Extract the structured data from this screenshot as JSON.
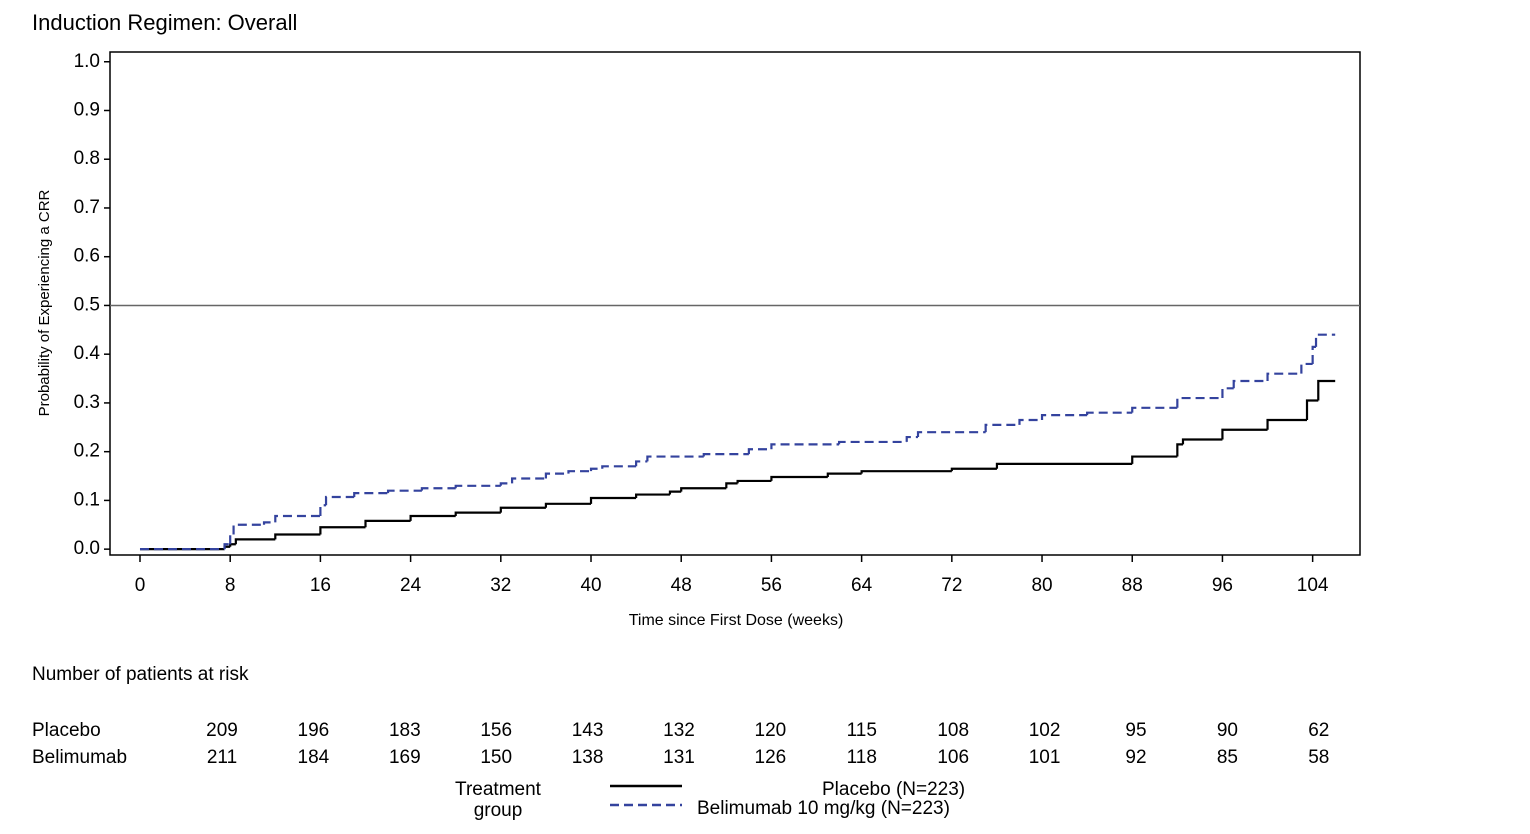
{
  "chart_data": {
    "type": "step",
    "title": "Induction Regimen: Overall",
    "x_label": "Time since First Dose (weeks)",
    "y_label": "Probability of Experiencing a CRR",
    "xlim": [
      -2.66,
      108.2
    ],
    "ylim": [
      -0.012,
      1.02
    ],
    "xticks": [
      0,
      8,
      16,
      24,
      32,
      40,
      48,
      56,
      64,
      72,
      80,
      88,
      96,
      104
    ],
    "yticks": [
      {
        "value": 0,
        "label": "0.0"
      },
      0.1,
      0.2,
      0.3,
      0.4,
      0.5,
      0.6,
      0.7,
      0.8,
      0.9,
      {
        "value": 1,
        "label": "1.0"
      }
    ],
    "hline": 0.5,
    "legend_title": "Treatment group",
    "series": [
      {
        "name": "Placebo (N=223)",
        "color": "#000000",
        "dash": "solid",
        "x": [
          0,
          7.5,
          8,
          8.5,
          12,
          16,
          20,
          24,
          28,
          32,
          36,
          40,
          44,
          47,
          48,
          52,
          53,
          56,
          61,
          64,
          72,
          76,
          88,
          92,
          92.5,
          96,
          100,
          103.5,
          104.5,
          106
        ],
        "values": [
          0,
          0.005,
          0.01,
          0.02,
          0.03,
          0.045,
          0.058,
          0.068,
          0.075,
          0.085,
          0.093,
          0.105,
          0.112,
          0.118,
          0.125,
          0.135,
          0.14,
          0.148,
          0.155,
          0.16,
          0.165,
          0.175,
          0.19,
          0.215,
          0.225,
          0.245,
          0.265,
          0.305,
          0.345,
          0.345
        ]
      },
      {
        "name": "Belimumab 10 mg/kg (N=223)",
        "color": "#34439e",
        "dash": "dashed",
        "x": [
          0,
          7.5,
          8,
          8.3,
          11,
          12,
          16,
          16.5,
          19,
          22,
          25,
          28,
          32,
          33,
          36,
          38,
          40,
          41,
          44,
          45,
          50,
          54,
          56,
          62,
          68,
          69,
          75,
          78,
          80,
          84,
          88,
          92,
          96,
          97,
          100,
          103,
          104,
          104.3,
          106
        ],
        "values": [
          0,
          0.01,
          0.03,
          0.05,
          0.055,
          0.068,
          0.09,
          0.107,
          0.115,
          0.12,
          0.125,
          0.13,
          0.135,
          0.145,
          0.155,
          0.16,
          0.165,
          0.17,
          0.18,
          0.19,
          0.195,
          0.205,
          0.215,
          0.22,
          0.23,
          0.24,
          0.255,
          0.265,
          0.275,
          0.28,
          0.29,
          0.31,
          0.33,
          0.345,
          0.36,
          0.38,
          0.415,
          0.44,
          0.44
        ]
      }
    ],
    "risk_table": {
      "title": "Number of patients at risk",
      "rows": [
        {
          "label": "Placebo",
          "values": [
            209,
            196,
            183,
            156,
            143,
            132,
            120,
            115,
            108,
            102,
            95,
            90,
            62
          ]
        },
        {
          "label": "Belimumab",
          "values": [
            211,
            184,
            169,
            150,
            138,
            131,
            126,
            118,
            106,
            101,
            92,
            85,
            58
          ]
        }
      ]
    }
  }
}
